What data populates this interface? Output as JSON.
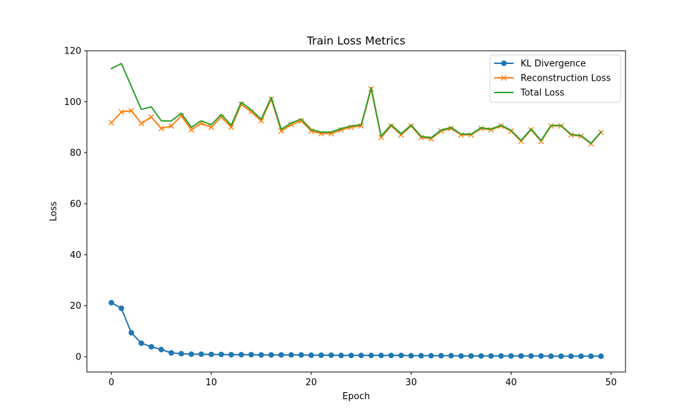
{
  "chart_data": {
    "type": "line",
    "title": "Train Loss Metrics",
    "xlabel": "Epoch",
    "ylabel": "Loss",
    "xlim": [
      -2.45,
      51.45
    ],
    "ylim": [
      -6.0,
      120.0
    ],
    "xticks": [
      0,
      10,
      20,
      30,
      40,
      50
    ],
    "yticks": [
      0,
      20,
      40,
      60,
      80,
      100,
      120
    ],
    "grid": false,
    "legend_position": "top-right",
    "x": [
      0,
      1,
      2,
      3,
      4,
      5,
      6,
      7,
      8,
      9,
      10,
      11,
      12,
      13,
      14,
      15,
      16,
      17,
      18,
      19,
      20,
      21,
      22,
      23,
      24,
      25,
      26,
      27,
      28,
      29,
      30,
      31,
      32,
      33,
      34,
      35,
      36,
      37,
      38,
      39,
      40,
      41,
      42,
      43,
      44,
      45,
      46,
      47,
      48,
      49
    ],
    "series": [
      {
        "name": "KL Divergence",
        "color": "#1f77b4",
        "marker": "circle",
        "values": [
          21.2,
          19.0,
          9.4,
          5.3,
          3.9,
          2.8,
          1.5,
          1.2,
          1.0,
          1.0,
          0.9,
          0.9,
          0.8,
          0.8,
          0.8,
          0.7,
          0.7,
          0.7,
          0.7,
          0.7,
          0.6,
          0.6,
          0.6,
          0.5,
          0.5,
          0.5,
          0.5,
          0.5,
          0.5,
          0.5,
          0.4,
          0.4,
          0.4,
          0.4,
          0.4,
          0.3,
          0.3,
          0.3,
          0.3,
          0.3,
          0.3,
          0.3,
          0.3,
          0.3,
          0.2,
          0.2,
          0.2,
          0.2,
          0.2,
          0.2
        ]
      },
      {
        "name": "Reconstruction Loss",
        "color": "#ff7f0e",
        "marker": "x",
        "values": [
          91.8,
          96.0,
          96.5,
          91.5,
          94.0,
          89.5,
          90.5,
          94.5,
          89.0,
          91.5,
          90.0,
          94.0,
          90.0,
          99.0,
          96.0,
          92.5,
          101.0,
          88.5,
          91.0,
          92.5,
          88.5,
          87.5,
          87.5,
          89.0,
          90.0,
          90.5,
          105.0,
          86.0,
          90.5,
          87.0,
          90.5,
          86.0,
          85.5,
          88.5,
          89.5,
          87.0,
          87.0,
          89.5,
          89.0,
          90.5,
          88.5,
          84.5,
          89.0,
          84.5,
          90.5,
          90.5,
          87.0,
          86.5,
          83.5,
          88.0
        ]
      },
      {
        "name": "Total Loss",
        "color": "#2ca02c",
        "marker": "none",
        "values": [
          113.0,
          115.0,
          106.0,
          97.0,
          98.0,
          92.5,
          92.5,
          95.5,
          90.0,
          92.5,
          91.0,
          95.0,
          90.8,
          99.8,
          96.8,
          93.2,
          101.7,
          89.2,
          91.7,
          93.2,
          89.1,
          88.1,
          88.1,
          89.5,
          90.5,
          91.0,
          105.5,
          86.5,
          91.0,
          87.5,
          90.9,
          86.4,
          85.9,
          88.9,
          89.9,
          87.3,
          87.3,
          89.8,
          89.3,
          90.8,
          88.8,
          84.8,
          89.3,
          84.8,
          90.7,
          90.7,
          87.2,
          86.7,
          83.7,
          88.2
        ]
      }
    ]
  }
}
